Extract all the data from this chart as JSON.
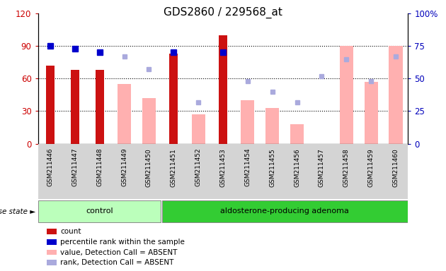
{
  "title": "GDS2860 / 229568_at",
  "samples": [
    "GSM211446",
    "GSM211447",
    "GSM211448",
    "GSM211449",
    "GSM211450",
    "GSM211451",
    "GSM211452",
    "GSM211453",
    "GSM211454",
    "GSM211455",
    "GSM211456",
    "GSM211457",
    "GSM211458",
    "GSM211459",
    "GSM211460"
  ],
  "control_count": 5,
  "groups": [
    "control",
    "aldosterone-producing adenoma"
  ],
  "red_bars": [
    72,
    68,
    68,
    0,
    0,
    83,
    0,
    100,
    0,
    0,
    0,
    0,
    0,
    0,
    0
  ],
  "blue_dots": [
    75,
    73,
    70,
    null,
    null,
    70,
    null,
    70,
    null,
    null,
    null,
    null,
    null,
    null,
    null
  ],
  "pink_bars": [
    null,
    null,
    null,
    55,
    42,
    null,
    27,
    null,
    40,
    33,
    18,
    null,
    90,
    57,
    90
  ],
  "light_blue_dots": [
    null,
    null,
    null,
    67,
    57,
    null,
    32,
    null,
    48,
    40,
    32,
    52,
    65,
    48,
    67
  ],
  "left_ylim": [
    0,
    120
  ],
  "right_ylim": [
    0,
    100
  ],
  "left_yticks": [
    0,
    30,
    60,
    90,
    120
  ],
  "right_yticks": [
    0,
    25,
    50,
    75,
    100
  ],
  "left_ytick_labels": [
    "0",
    "30",
    "60",
    "90",
    "120"
  ],
  "right_ytick_labels": [
    "0",
    "25",
    "50",
    "75",
    "100%"
  ],
  "left_color": "#cc0000",
  "right_color": "#0000bb",
  "red_bar_color": "#cc1111",
  "blue_dot_color": "#0000cc",
  "pink_bar_color": "#ffb0b0",
  "light_blue_dot_color": "#aaaadd",
  "control_bg": "#bbffbb",
  "adenoma_bg": "#33cc33",
  "background_gray": "#d4d4d4",
  "disease_state_label": "disease state"
}
